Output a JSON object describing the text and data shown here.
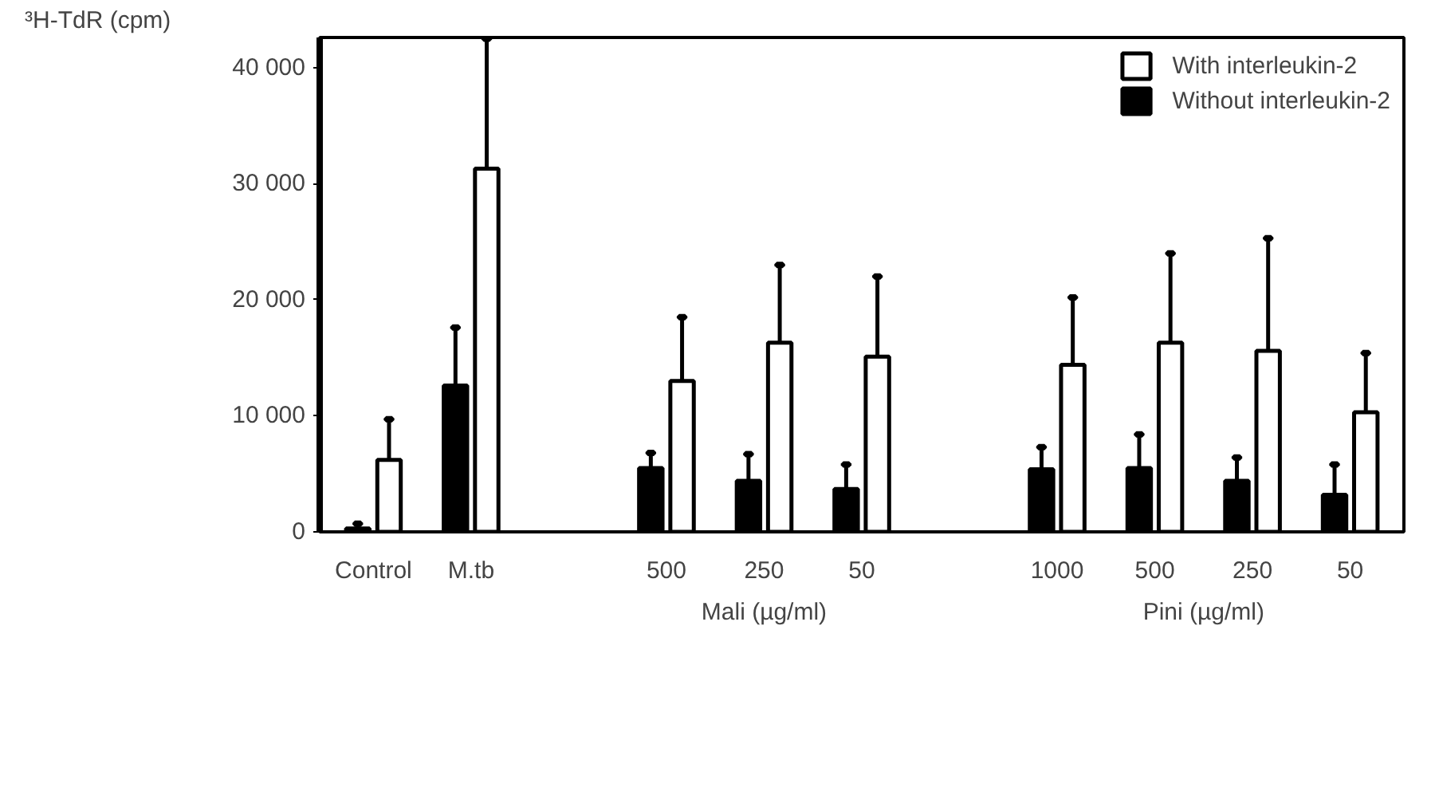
{
  "chart_data": {
    "type": "bar",
    "ylabel": "³H-TdR (cpm)",
    "categories": [
      "Control",
      "M.tb",
      null,
      "500",
      "250",
      "50",
      null,
      "1000",
      "500",
      "250",
      "50"
    ],
    "series": [
      {
        "name": "Without interleukin-2",
        "color": "#000000",
        "values": [
          300,
          12600,
          null,
          5500,
          4400,
          3700,
          null,
          5400,
          5500,
          4400,
          3200
        ],
        "errors": [
          [
            300,
            700
          ],
          [
            12600,
            17600
          ],
          null,
          [
            5500,
            6800
          ],
          [
            4400,
            6700
          ],
          [
            3700,
            5800
          ],
          null,
          [
            5400,
            7300
          ],
          [
            5500,
            8400
          ],
          [
            4400,
            6400
          ],
          [
            3200,
            5800
          ]
        ]
      },
      {
        "name": "With interleukin-2",
        "color": "#ffffff",
        "values": [
          6200,
          31300,
          null,
          13000,
          16300,
          15100,
          null,
          14400,
          16300,
          15600,
          10300
        ],
        "errors": [
          [
            6200,
            9700
          ],
          [
            31300,
            42500
          ],
          null,
          [
            13000,
            18500
          ],
          [
            16300,
            23000
          ],
          [
            15100,
            22000
          ],
          null,
          [
            14400,
            20200
          ],
          [
            16300,
            24000
          ],
          [
            15600,
            25300
          ],
          [
            10300,
            15400
          ]
        ]
      }
    ],
    "ylim": [
      0,
      42600
    ],
    "yticks": [
      0,
      {
        "value": 10000,
        "label": "10 000"
      },
      {
        "value": 20000,
        "label": "20 000"
      },
      {
        "value": 30000,
        "label": "30 000"
      },
      {
        "value": 40000,
        "label": "40 000"
      }
    ],
    "annotations": [
      "Mali (µg/ml)",
      "Pini (µg/ml)"
    ],
    "legend": "top right",
    "grid": false
  }
}
